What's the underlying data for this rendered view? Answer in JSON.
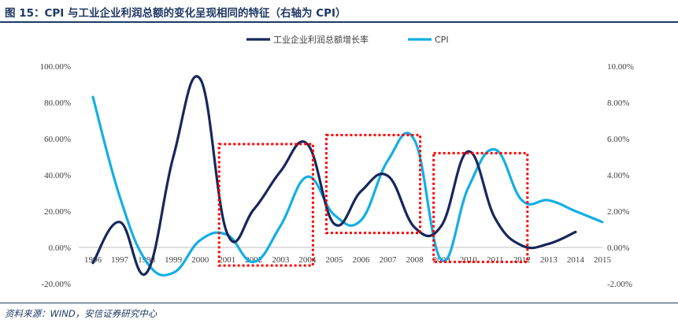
{
  "figure": {
    "title": "图 15：CPI 与工业企业利润总额的变化呈现相同的特征（右轴为 CPI）",
    "source": "资料来源：WIND，安信证券研究中心"
  },
  "chart_data": {
    "type": "line",
    "x": [
      "1996",
      "1997",
      "1998",
      "1999",
      "2000",
      "2001",
      "2002",
      "2003",
      "2004",
      "2005",
      "2006",
      "2007",
      "2008",
      "2009",
      "2010",
      "2011",
      "2012",
      "2013",
      "2014",
      "2015"
    ],
    "series": [
      {
        "name": "工业企业利润总额增长率",
        "axis": "left",
        "color": "#17275c",
        "values": [
          -8.5,
          14.0,
          -14.0,
          50.0,
          93.0,
          8.0,
          21.0,
          42.0,
          57.0,
          13.0,
          31.0,
          39.5,
          11.0,
          12.0,
          53.0,
          16.0,
          1.0,
          2.0,
          8.5,
          null
        ]
      },
      {
        "name": "CPI",
        "axis": "right",
        "color": "#14aee5",
        "values": [
          8.3,
          2.8,
          -0.8,
          -1.4,
          0.4,
          0.7,
          -0.8,
          1.2,
          3.9,
          1.8,
          1.5,
          4.8,
          5.9,
          -0.7,
          3.3,
          5.4,
          2.6,
          2.6,
          2.0,
          1.4
        ]
      }
    ],
    "y_left": {
      "ticks": [
        "100.00%",
        "80.00%",
        "60.00%",
        "40.00%",
        "20.00%",
        "0.00%",
        "-20.00%"
      ],
      "range": [
        -20,
        100
      ]
    },
    "y_right": {
      "ticks": [
        "10.00%",
        "8.00%",
        "6.00%",
        "4.00%",
        "2.00%",
        "0.00%",
        "-2.00%"
      ],
      "range": [
        -2,
        10
      ]
    },
    "highlight_boxes": [
      {
        "from": "2001",
        "to": "2004"
      },
      {
        "from": "2005",
        "to": "2008"
      },
      {
        "from": "2009",
        "to": "2012"
      }
    ],
    "highlight_color": "#ff0000",
    "grid": false,
    "legend_position": "top"
  }
}
